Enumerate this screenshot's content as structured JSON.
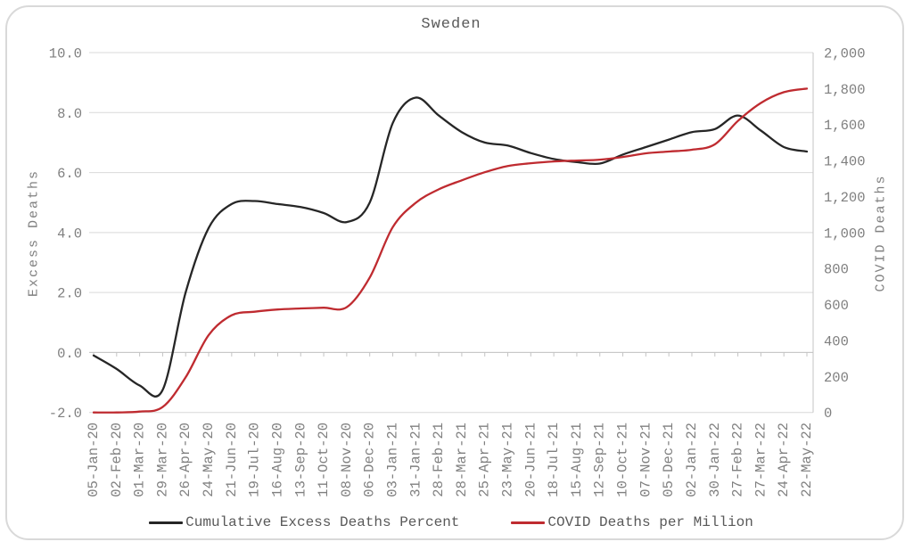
{
  "card": {
    "title": "Sweden"
  },
  "chart_data": {
    "type": "line",
    "title": "Sweden",
    "grid": true,
    "legend_position": "bottom",
    "categories": [
      "05-Jan-20",
      "02-Feb-20",
      "01-Mar-20",
      "29-Mar-20",
      "26-Apr-20",
      "24-May-20",
      "21-Jun-20",
      "19-Jul-20",
      "16-Aug-20",
      "13-Sep-20",
      "11-Oct-20",
      "08-Nov-20",
      "06-Dec-20",
      "03-Jan-21",
      "31-Jan-21",
      "28-Feb-21",
      "28-Mar-21",
      "25-Apr-21",
      "23-May-21",
      "20-Jun-21",
      "18-Jul-21",
      "15-Aug-21",
      "12-Sep-21",
      "10-Oct-21",
      "07-Nov-21",
      "05-Dec-21",
      "02-Jan-22",
      "30-Jan-22",
      "27-Feb-22",
      "27-Mar-22",
      "24-Apr-22",
      "22-May-22"
    ],
    "series": [
      {
        "name": "Cumulative Excess Deaths Percent",
        "axis": "left",
        "color": "#262626",
        "values": [
          -0.1,
          -0.55,
          -1.1,
          -1.25,
          2.0,
          4.15,
          4.95,
          5.05,
          4.95,
          4.85,
          4.65,
          4.35,
          5.0,
          7.65,
          8.5,
          7.9,
          7.35,
          7.0,
          6.9,
          6.65,
          6.45,
          6.35,
          6.3,
          6.6,
          6.85,
          7.1,
          7.35,
          7.45,
          7.9,
          7.4,
          6.85,
          6.7
        ]
      },
      {
        "name": "COVID Deaths per Million",
        "axis": "right",
        "color": "#bf2b30",
        "values": [
          0,
          0,
          5,
          30,
          195,
          430,
          540,
          560,
          572,
          578,
          582,
          585,
          750,
          1030,
          1165,
          1240,
          1290,
          1335,
          1370,
          1385,
          1395,
          1400,
          1405,
          1420,
          1440,
          1450,
          1460,
          1490,
          1620,
          1720,
          1780,
          1800
        ]
      }
    ],
    "axes": {
      "left": {
        "label": "Excess Deaths",
        "min": -2,
        "max": 10,
        "ticks": [
          "10.0",
          "8.0",
          "6.0",
          "4.0",
          "2.0",
          "0.0",
          "-2.0"
        ]
      },
      "right": {
        "label": "COVID Deaths",
        "min": 0,
        "max": 2000,
        "ticks": [
          "2,000",
          "1,800",
          "1,600",
          "1,400",
          "1,200",
          "1,000",
          "800",
          "600",
          "400",
          "200",
          "0"
        ]
      }
    },
    "colors": {
      "gridline": "#d9d9d9",
      "axis_line": "#c4c4c4",
      "tick_text": "#7f7f7f",
      "title_text": "#595959"
    }
  }
}
